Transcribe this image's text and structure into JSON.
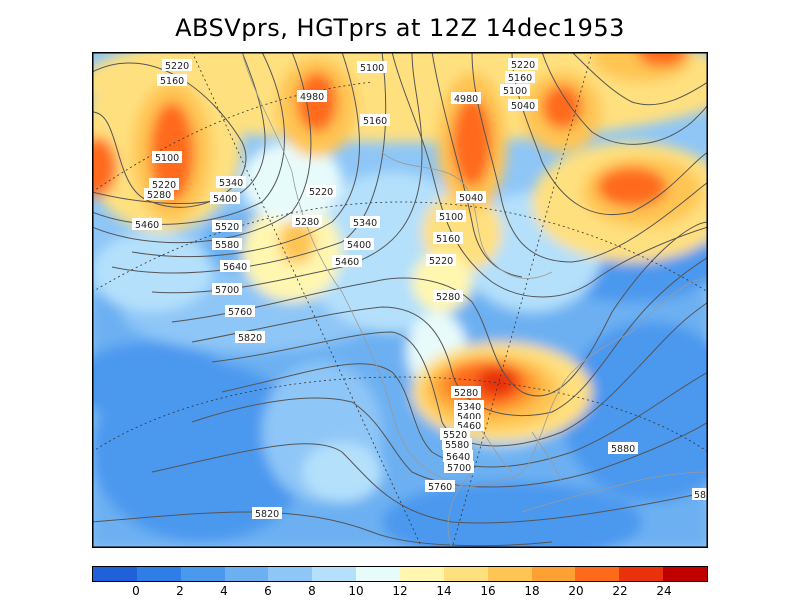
{
  "title": "ABSVprs, HGTprs at 12Z  14dec1953",
  "colorbar": {
    "colors": [
      "#2060d8",
      "#2f7ee8",
      "#4b98ef",
      "#6cb0f2",
      "#8ec6f7",
      "#b4e0fb",
      "#e8fbfb",
      "#fff6b0",
      "#ffe07f",
      "#ffc553",
      "#ffa033",
      "#ff6a1a",
      "#e8320c",
      "#c00000"
    ],
    "ticks": [
      "0",
      "2",
      "4",
      "6",
      "8",
      "10",
      "12",
      "14",
      "16",
      "18",
      "20",
      "22",
      "24"
    ]
  },
  "contour_labels": [
    "5220",
    "5160",
    "5100",
    "5220",
    "5280",
    "5460",
    "5340",
    "5400",
    "5520",
    "5580",
    "5640",
    "5700",
    "5760",
    "5820",
    "4980",
    "5100",
    "5160",
    "5220",
    "5280",
    "5340",
    "5400",
    "5460",
    "4980",
    "5220",
    "5160",
    "5100",
    "5040",
    "5040",
    "5100",
    "5160",
    "5220",
    "5280",
    "5280",
    "5340",
    "5400",
    "5460",
    "5520",
    "5580",
    "5640",
    "5700",
    "5760",
    "5880",
    "5820",
    "58"
  ]
}
